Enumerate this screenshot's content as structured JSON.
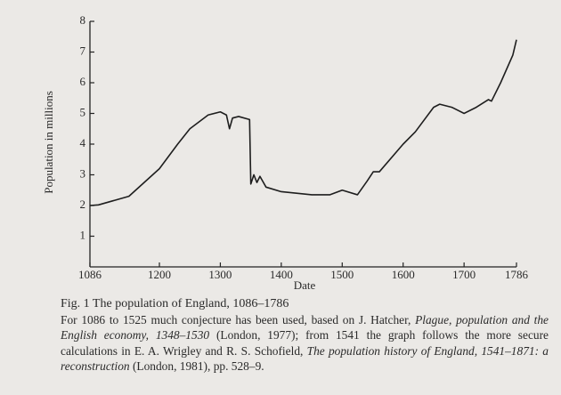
{
  "chart_data": {
    "type": "line",
    "x_label": "Date",
    "y_label": "Population in millions",
    "x": [
      1086,
      1100,
      1150,
      1200,
      1230,
      1250,
      1280,
      1300,
      1310,
      1315,
      1320,
      1330,
      1348,
      1350,
      1355,
      1360,
      1365,
      1375,
      1400,
      1450,
      1480,
      1500,
      1525,
      1541,
      1551,
      1561,
      1600,
      1620,
      1650,
      1660,
      1680,
      1700,
      1720,
      1740,
      1745,
      1760,
      1780,
      1786
    ],
    "series": [
      {
        "color": "#1e1e1e",
        "values": [
          2.0,
          2.02,
          2.3,
          3.2,
          4.0,
          4.5,
          4.95,
          5.05,
          4.95,
          4.5,
          4.85,
          4.9,
          4.8,
          2.7,
          3.0,
          2.75,
          2.95,
          2.6,
          2.45,
          2.35,
          2.35,
          2.5,
          2.35,
          2.8,
          3.1,
          3.1,
          4.0,
          4.4,
          5.2,
          5.3,
          5.2,
          5.0,
          5.2,
          5.45,
          5.4,
          6.0,
          6.9,
          7.4
        ]
      }
    ],
    "xlim": [
      1086,
      1786
    ],
    "xticks": [
      1086,
      1200,
      1300,
      1400,
      1500,
      1600,
      1700,
      1786
    ],
    "ylim": [
      0,
      8
    ],
    "yticks": [
      1,
      2,
      3,
      4,
      5,
      6,
      7,
      8
    ]
  },
  "caption": {
    "title": "Fig. 1 The population of England, 1086–1786",
    "body": [
      {
        "text": "For 1086 to 1525 much conjecture has been used, based on J. Hatcher, ",
        "italic": false
      },
      {
        "text": "Plague, population and the English economy, 1348–1530",
        "italic": true
      },
      {
        "text": " (London, 1977); from 1541 the graph follows the more secure calculations in E. A. Wrigley and R. S. Schofield, ",
        "italic": false
      },
      {
        "text": "The population history of England, 1541–1871: a reconstruction",
        "italic": true
      },
      {
        "text": " (London, 1981), pp. 528–9.",
        "italic": false
      }
    ]
  }
}
